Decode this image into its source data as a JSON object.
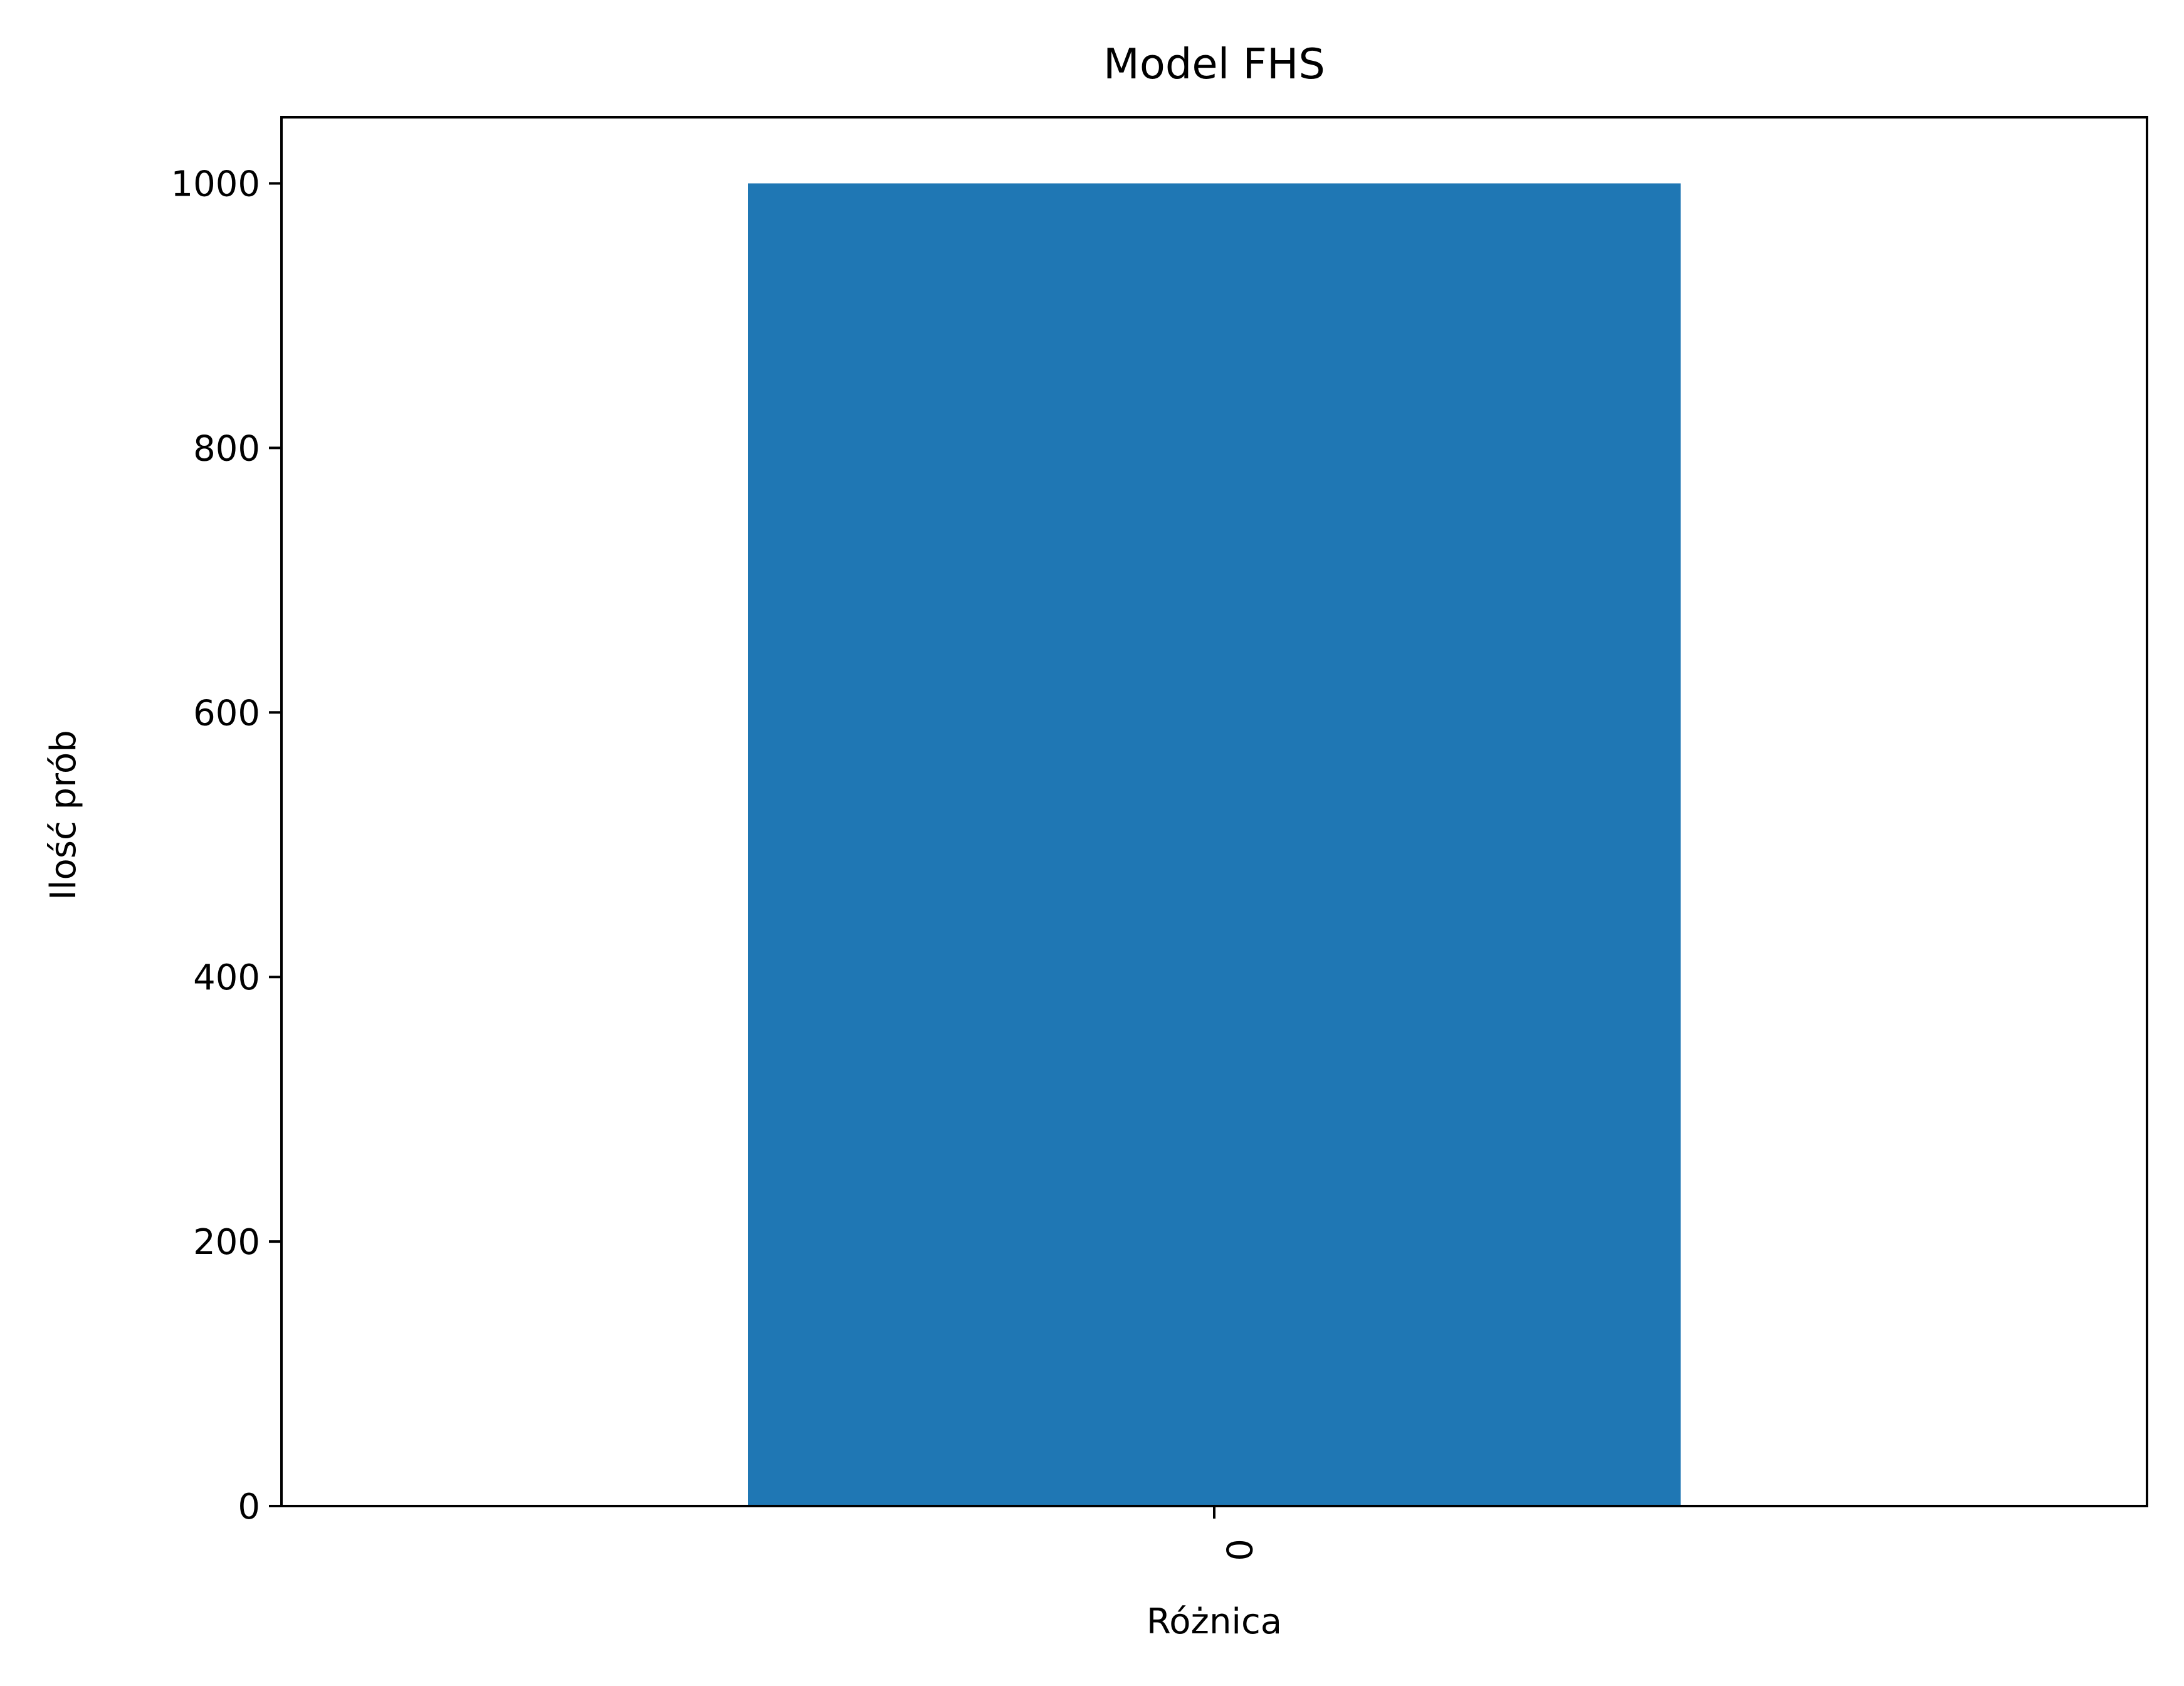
{
  "chart_data": {
    "type": "bar",
    "title": "Model FHS",
    "xlabel": "Różnica",
    "ylabel": "Ilość prób",
    "categories": [
      "0"
    ],
    "values": [
      1000
    ],
    "ylim": [
      0,
      1050
    ],
    "yticks": [
      "0",
      "200",
      "400",
      "600",
      "800",
      "1000"
    ],
    "xtick_rotation": 90,
    "grid": false,
    "legend": "none",
    "colors": {
      "bar": "#1f77b4",
      "axes": "#000000",
      "background": "#ffffff"
    }
  }
}
